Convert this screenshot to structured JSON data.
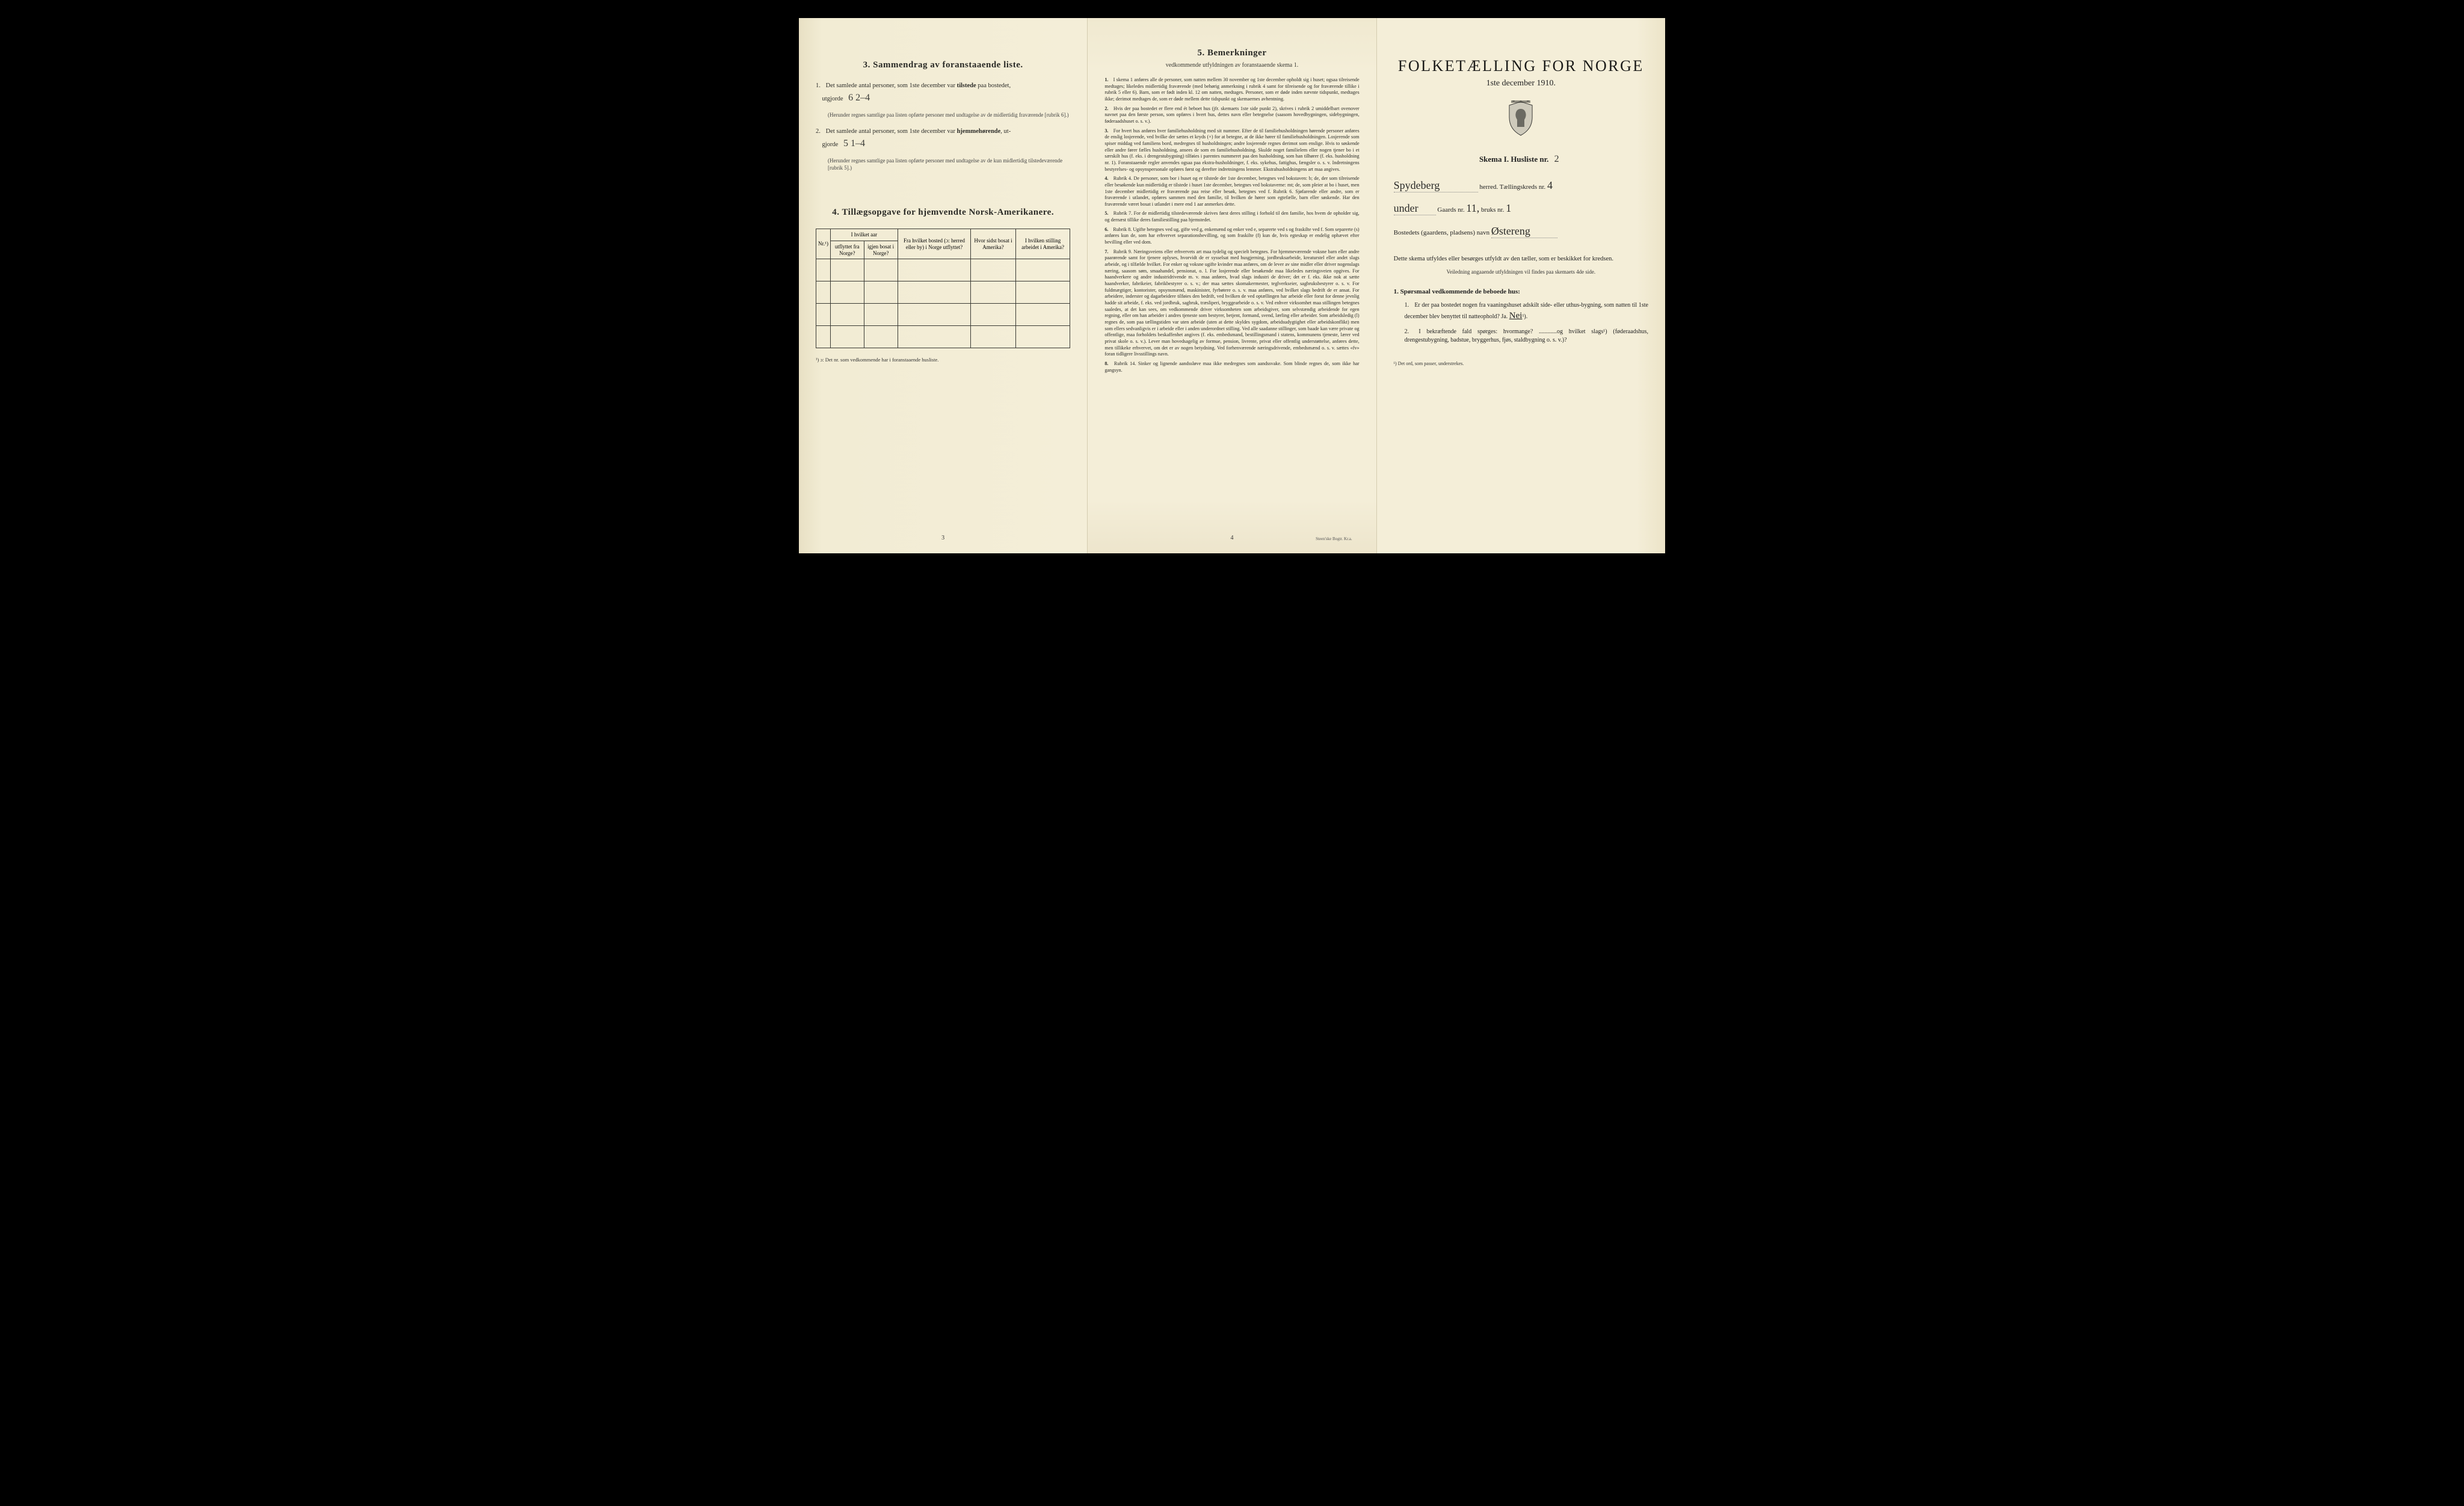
{
  "colors": {
    "paper": "#f4eed8",
    "paper_edge_left": "#e8e0c4",
    "paper_edge_right": "#ece4c8",
    "ink": "#2a2a26",
    "border": "#3a3a34",
    "background": "#000000"
  },
  "left": {
    "section3_title": "3.   Sammendrag av foranstaaende liste.",
    "q1_prefix": "Det samlede antal personer, som 1ste december var ",
    "q1_bold": "tilstede",
    "q1_suffix": " paa bostedet,",
    "q1_line2": "utgjorde",
    "q1_fill": "6   2–4",
    "q1_note": "(Herunder regnes samtlige paa listen opførte personer med undtagelse av de midlertidig fraværende [rubrik 6].)",
    "q2_prefix": "Det samlede antal personer, som 1ste december var ",
    "q2_bold": "hjemmehørende",
    "q2_suffix": ", ut-",
    "q2_line2": "gjorde",
    "q2_fill": "5   1–4",
    "q2_note": "(Herunder regnes samtlige paa listen opførte personer med undtagelse av de kun midlertidig tilstedeværende [rubrik 5].)",
    "section4_title": "4.  Tillægsopgave for hjemvendte Norsk-Amerikanere.",
    "table": {
      "headers": {
        "col1": "Nr.¹)",
        "col2_top": "I hvilket aar",
        "col2a": "utflyttet fra Norge?",
        "col2b": "igjen bosat i Norge?",
        "col3": "Fra hvilket bosted (ɔ: herred eller by) i Norge utflyttet?",
        "col4": "Hvor sidst bosat i Amerika?",
        "col5": "I hvilken stilling arbeidet i Amerika?"
      },
      "empty_rows": 4
    },
    "footnote": "¹) ɔ: Det nr. som vedkommende har i foranstaaende husliste.",
    "pagenum": "3"
  },
  "middle": {
    "section5_title": "5.   Bemerkninger",
    "section5_sub": "vedkommende utfyldningen av foranstaaende skema 1.",
    "paras": [
      {
        "n": "1.",
        "t": "I skema 1 anføres alle de personer, som natten mellem 30 november og 1ste december opholdt sig i huset; ogsaa tilreisende medtages; likeledes midlertidig fraværende (med behørig anmerkning i rubrik 4 samt for tilreisende og for fraværende tillike i rubrik 5 eller 6). Barn, som er født inden kl. 12 om natten, medtages. Personer, som er døde inden nævnte tidspunkt, medtages ikke; derimot medtages de, som er døde mellem dette tidspunkt og skemaernes avhentning."
      },
      {
        "n": "2.",
        "t": "Hvis der paa bostedet er flere end ét beboet hus (jfr. skemaets 1ste side punkt 2), skrives i rubrik 2 umiddelbart ovenover navnet paa den første person, som opføres i hvert hus, dettes navn eller betegnelse (saasom hovedbygningen, sidebygningen, føderaadshuset o. s. v.)."
      },
      {
        "n": "3.",
        "t": "For hvert hus anføres hver familiehusholdning med sit nummer. Efter de til familiehusholdningen hørende personer anføres de enslig losjerende, ved hvilke der sættes et kryds (×) for at betegne, at de ikke hører til familiehusholdningen. Losjerende som spiser middag ved familiens bord, medregnes til husholdningen; andre losjerende regnes derimot som enslige. Hvis to søskende eller andre fører fælles husholdning, ansees de som en familiehusholdning. Skulde noget familielem eller nogen tjener bo i et særskilt hus (f. eks. i drengestubygning) tilføies i parentes nummeret paa den husholdning, som han tilhører (f. eks. husholdning nr. 1).      Foranstaaende regler anvendes ogsaa paa ekstra-husholdninger, f. eks. sykehus, fattighus, fængsler o. s. v. Indretningens bestyrelses- og opsynspersonale opføres først og derefter indretningens lemmer. Ekstrahusholdningens art maa angives."
      },
      {
        "n": "4.",
        "t": "Rubrik 4. De personer, som bor i huset og er tilstede der 1ste december, betegnes ved bokstaven: b; de, der som tilreisende eller besøkende kun midlertidig er tilstede i huset 1ste december, betegnes ved bokstaverne: mt; de, som pleier at bo i huset, men 1ste december midlertidig er fraværende paa reise eller besøk, betegnes ved f.      Rubrik 6. Sjøfarende eller andre, som er fraværende i utlandet, opføres sammen med den familie, til hvilken de hører som egtefælle, barn eller søskende.      Har den fraværende været bosat i utlandet i mere end 1 aar anmerkes dette."
      },
      {
        "n": "5.",
        "t": "Rubrik 7. For de midlertidig tilstedeværende skrives først deres stilling i forhold til den familie, hos hvem de opholder sig, og dernæst tillike deres familiestilling paa hjemstedet."
      },
      {
        "n": "6.",
        "t": "Rubrik 8. Ugifte betegnes ved ug, gifte ved g, enkemænd og enker ved e, separerte ved s og fraskilte ved f. Som separerte (s) anføres kun de, som har erhvervet separationsbevilling, og som fraskilte (f) kun de, hvis egteskap er endelig ophævet efter bevilling eller ved dom."
      },
      {
        "n": "7.",
        "t": "Rubrik 9. Næringsveiens eller erhvervets art maa tydelig og specielt betegnes.      For hjemmeværende voksne barn eller andre paarørende samt for tjenere oplyses, hvorvidt de er sysselsat med husgjerning, jordbruksarbeide, kreaturstel eller andet slags arbeide, og i tilfælde hvilket. For enker og voksne ugifte kvinder maa anføres, om de lever av sine midler eller driver nogenslags næring, saasom søm, smaahandel, pensionat, o. l.      For losjerende eller besøkende maa likeledes næringsveien opgives.      For haandverkere og andre industridrivende m. v. maa anføres, hvad slags industri de driver; det er f. eks. ikke nok at sætte haandverker, fabrikeier, fabrikbestyrer o. s. v.; der maa sættes skomakermester, teglverkseier, sagbruksbestyrer o. s. v.      For fuldmægtiger, kontorister, opsynsmænd, maskinister, fyrbøtere o. s. v. maa anføres, ved hvilket slags bedrift de er ansat.      For arbeidere, inderster og dagarbeidere tilføies den bedrift, ved hvilken de ved optællingen har arbeide eller forut for denne jevnlig hadde sit arbeide, f. eks. ved jordbruk, sagbruk, træsliperi, bryggearbeide o. s. v.      Ved enhver virksomhet maa stillingen betegnes saaledes, at det kan sees, om vedkommende driver virksomheten som arbeidsgiver, som selvstændig arbeidende for egen regning, eller om han arbeider i andres tjeneste som bestyrer, betjent, formand, svend, lærling eller arbeider.      Som arbeidsledig (l) regnes de, som paa tællingstiden var uten arbeide (uten at dette skyldes sygdom, arbeidsudygtighet eller arbeidskonflikt) men som ellers sedvanligvis er i arbeide eller i anden underordnet stilling.      Ved alle saadanne stillinger, som baade kan være private og offentlige, maa forholdets beskaffenhet angives (f. eks. embedsmand, bestillingsmand i statens, kommunens tjeneste, lærer ved privat skole o. s. v.).      Lever man hovedsagelig av formue, pension, livrente, privat eller offentlig understøttelse, anføres dette, men tillikeke erhvervet, om det er av nogen betydning.      Ved forhenværende næringsdrivende, embedsmænd o. s. v. sættes «fv» foran tidligere livsstillings navn."
      },
      {
        "n": "8.",
        "t": "Rubrik 14. Sinker og lignende aandssløve maa ikke medregnes som aandssvake. Som blinde regnes de, som ikke har gangsyn."
      }
    ],
    "pagenum": "4",
    "imprint": "Steen'ske Bogtr. Kr.a."
  },
  "right": {
    "title_main": "FOLKETÆLLING FOR NORGE",
    "title_sub": "1ste december 1910.",
    "skema_label": "Skema I.  Husliste nr.",
    "skema_fill": "2",
    "herred_fill": "Spydeberg",
    "herred_label": "herred.  Tællingskreds nr.",
    "kreds_fill": "4",
    "under_fill": "under",
    "gaards_label": "Gaards nr.",
    "gaards_fill": "11,",
    "bruks_label": "bruks nr.",
    "bruks_fill": "1",
    "bosted_label": "Bostedets (gaardens, pladsens) navn",
    "bosted_fill": "Østereng",
    "instruct": "Dette skema utfyldes eller besørges utfyldt av den tæller, som er beskikket for kredsen.",
    "instruct_small": "Veiledning angaaende utfyldningen vil findes paa skemaets 4de side.",
    "q_head": "1. Spørsmaal vedkommende de beboede hus:",
    "q1": "Er der paa bostedet nogen fra vaaningshuset adskilt side- eller uthus-bygning, som natten til 1ste december blev benyttet til natteophold?   Ja.   ",
    "q1_answer": "Nei",
    "q1_sup": "¹).",
    "q2": "I bekræftende fald spørges: hvormange? ............og hvilket slags¹) (føderaadshus, drengestubygning, badstue, bryggerhus, fjøs, staldbygning o. s. v.)?",
    "foot": "¹) Det ord, som passer, understrekes."
  }
}
